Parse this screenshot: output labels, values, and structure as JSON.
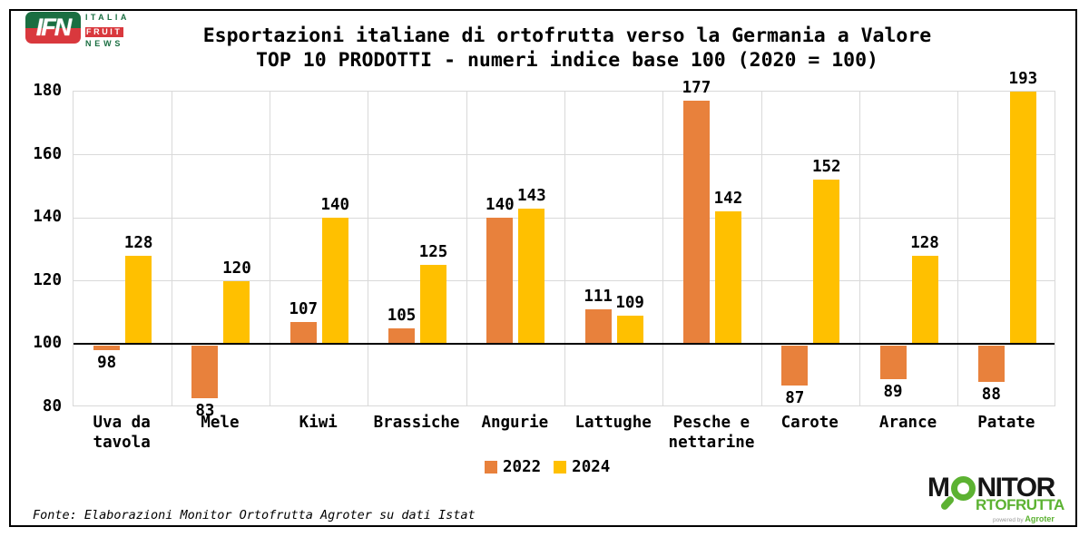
{
  "header": {
    "logo": {
      "ifn": "IFN",
      "italia": "ITALIA",
      "fruit": "FRUIT",
      "news": "NEWS"
    },
    "title_line1": "Esportazioni italiane di ortofrutta verso la Germania a Valore",
    "title_line2": "TOP 10 PRODOTTI - numeri indice base 100 (2020 = 100)"
  },
  "chart_data": {
    "type": "bar",
    "title": "Esportazioni italiane di ortofrutta verso la Germania a Valore — TOP 10 PRODOTTI - numeri indice base 100 (2020 = 100)",
    "categories": [
      "Uva da tavola",
      "Mele",
      "Kiwi",
      "Brassiche",
      "Angurie",
      "Lattughe",
      "Pesche e nettarine",
      "Carote",
      "Arance",
      "Patate"
    ],
    "series": [
      {
        "name": "2022",
        "color": "#E8813C",
        "values": [
          98,
          83,
          107,
          105,
          140,
          111,
          177,
          87,
          89,
          88
        ]
      },
      {
        "name": "2024",
        "color": "#FFC000",
        "values": [
          128,
          120,
          140,
          125,
          143,
          109,
          142,
          152,
          128,
          193
        ]
      }
    ],
    "baseline": 100,
    "ylim": [
      80,
      180
    ],
    "yticks": [
      80,
      100,
      120,
      140,
      160,
      180
    ],
    "grid": true,
    "legend_position": "bottom",
    "note": "bars are drawn from the 100 baseline; Patate 2024 (193) is clipped at 180"
  },
  "footer": {
    "source": "Fonte: Elaborazioni Monitor Ortofrutta Agroter su dati Istat"
  },
  "monitor_logo": {
    "m": "M",
    "nitor": "NITOR",
    "rtofrutta": "RTOFRUTTA",
    "powered": "powered by",
    "agroter": "Agroter"
  },
  "colors": {
    "series_2022": "#E8813C",
    "series_2024": "#FFC000",
    "gridline": "#D9D9D9",
    "axis": "#000000",
    "ifn_green": "#1A6E41",
    "ifn_red": "#D9383D",
    "monitor_green": "#5CB232"
  }
}
